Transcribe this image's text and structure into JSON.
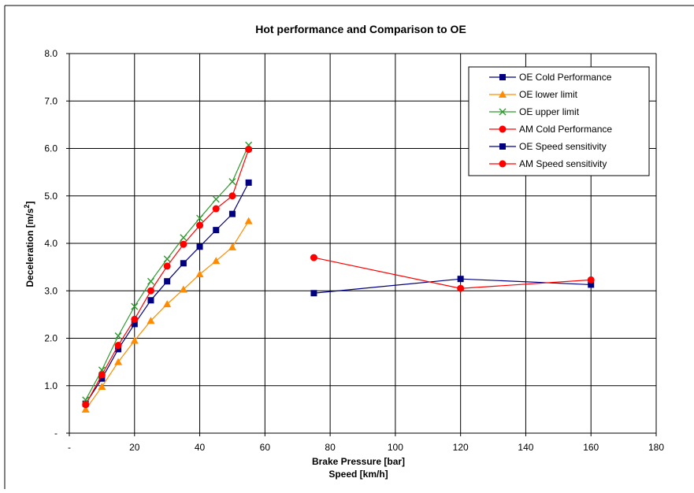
{
  "chart_data": {
    "type": "line",
    "title": "Hot performance and Comparison to OE",
    "xlabel": "Brake Pressure [bar]",
    "xlabel2": "Speed [km/h]",
    "ylabel": "Deceleration [m/s",
    "ylabel_sup": "2",
    "ylabel_end": "]",
    "xlim": [
      0,
      180
    ],
    "ylim": [
      0,
      8
    ],
    "x_ticks": [
      0,
      20,
      40,
      60,
      80,
      100,
      120,
      140,
      160,
      180
    ],
    "x_tick_labels": [
      "-",
      "20",
      "40",
      "60",
      "80",
      "100",
      "120",
      "140",
      "160",
      "180"
    ],
    "y_ticks": [
      0,
      1,
      2,
      3,
      4,
      5,
      6,
      7,
      8
    ],
    "y_tick_labels": [
      "-",
      "1.0",
      "2.0",
      "3.0",
      "4.0",
      "5.0",
      "6.0",
      "7.0",
      "8.0"
    ],
    "grid": true,
    "legend_position": "top-right",
    "series": [
      {
        "name": "OE Cold Performance",
        "color": "#000080",
        "marker": "square",
        "x": [
          5,
          10,
          15,
          20,
          25,
          30,
          35,
          40,
          45,
          50,
          55
        ],
        "y": [
          0.62,
          1.15,
          1.77,
          2.3,
          2.8,
          3.2,
          3.58,
          3.93,
          4.28,
          4.62,
          5.28
        ]
      },
      {
        "name": "OE lower limit",
        "color": "#ff8c00",
        "marker": "triangle",
        "x": [
          5,
          10,
          15,
          20,
          25,
          30,
          35,
          40,
          45,
          50,
          55
        ],
        "y": [
          0.5,
          0.98,
          1.5,
          1.95,
          2.37,
          2.72,
          3.03,
          3.35,
          3.63,
          3.92,
          4.47
        ]
      },
      {
        "name": "OE upper limit",
        "color": "#2e9a2e",
        "marker": "x",
        "x": [
          5,
          10,
          15,
          20,
          25,
          30,
          35,
          40,
          45,
          50,
          55
        ],
        "y": [
          0.7,
          1.33,
          2.05,
          2.67,
          3.2,
          3.67,
          4.12,
          4.53,
          4.93,
          5.3,
          6.07
        ]
      },
      {
        "name": "AM Cold Performance",
        "color": "#ff0000",
        "marker": "circle",
        "x": [
          5,
          10,
          15,
          20,
          25,
          30,
          35,
          40,
          45,
          50,
          55
        ],
        "y": [
          0.6,
          1.23,
          1.85,
          2.4,
          3.0,
          3.52,
          3.98,
          4.38,
          4.73,
          5.0,
          5.98
        ]
      },
      {
        "name": "OE Speed sensitivity",
        "color": "#000080",
        "marker": "square",
        "x": [
          75,
          120,
          160
        ],
        "y": [
          2.95,
          3.25,
          3.13
        ]
      },
      {
        "name": "AM Speed sensitivity",
        "color": "#ff0000",
        "marker": "circle",
        "x": [
          75,
          120,
          160
        ],
        "y": [
          3.7,
          3.05,
          3.23
        ]
      }
    ]
  }
}
